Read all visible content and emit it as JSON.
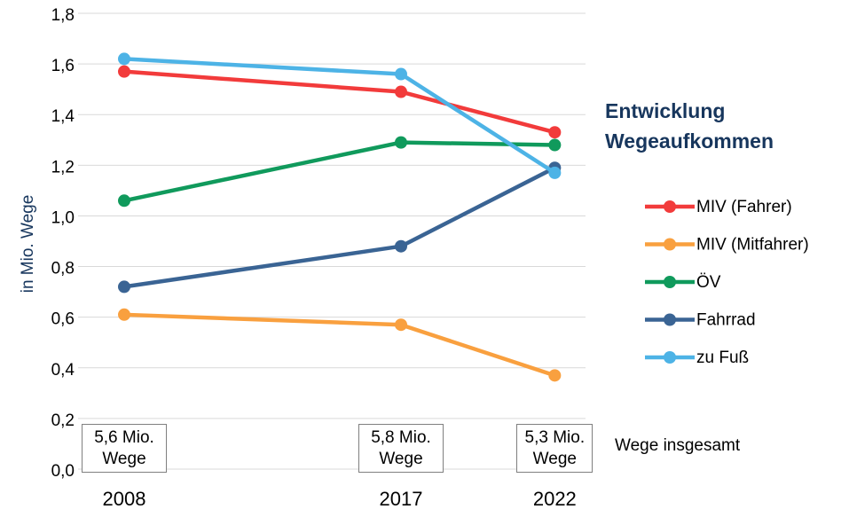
{
  "chart_data": {
    "type": "line",
    "title": "Entwicklung Wegeaufkommen",
    "y_label": "in Mio. Wege",
    "x": [
      2008,
      2017,
      2022
    ],
    "xlim": [
      2006.5,
      2023
    ],
    "xticks": [
      2008,
      2017,
      2022
    ],
    "ylim": [
      0,
      1.8
    ],
    "yticks": [
      {
        "value": 0,
        "label": "0,0"
      },
      {
        "value": 0.2,
        "label": "0,2"
      },
      {
        "value": 0.4,
        "label": "0,4"
      },
      {
        "value": 0.6,
        "label": "0,6"
      },
      {
        "value": 0.8,
        "label": "0,8"
      },
      {
        "value": 1.0,
        "label": "1,0"
      },
      {
        "value": 1.2,
        "label": "1,2"
      },
      {
        "value": 1.4,
        "label": "1,4"
      },
      {
        "value": 1.6,
        "label": "1,6"
      },
      {
        "value": 1.8,
        "label": "1,8"
      }
    ],
    "grid": true,
    "legend": "right",
    "series": [
      {
        "name": "MIV (Fahrer)",
        "color": "#f23b3b",
        "values": [
          1.57,
          1.49,
          1.33
        ]
      },
      {
        "name": "MIV (Mitfahrer)",
        "color": "#f9a03f",
        "values": [
          0.61,
          0.57,
          0.37
        ]
      },
      {
        "name": "ÖV",
        "color": "#109a5c",
        "values": [
          1.06,
          1.29,
          1.28
        ]
      },
      {
        "name": "Fahrrad",
        "color": "#3a6494",
        "values": [
          0.72,
          0.88,
          1.19
        ]
      },
      {
        "name": "zu Fuß",
        "color": "#4db3e6",
        "values": [
          1.62,
          1.56,
          1.17
        ]
      }
    ],
    "annotations": [
      {
        "x": 2008,
        "text": "5,6 Mio. Wege"
      },
      {
        "x": 2017,
        "text": "5,8 Mio. Wege"
      },
      {
        "x": 2022,
        "text": "5,3 Mio. Wege"
      }
    ],
    "annotation_label": "Wege insgesamt"
  }
}
